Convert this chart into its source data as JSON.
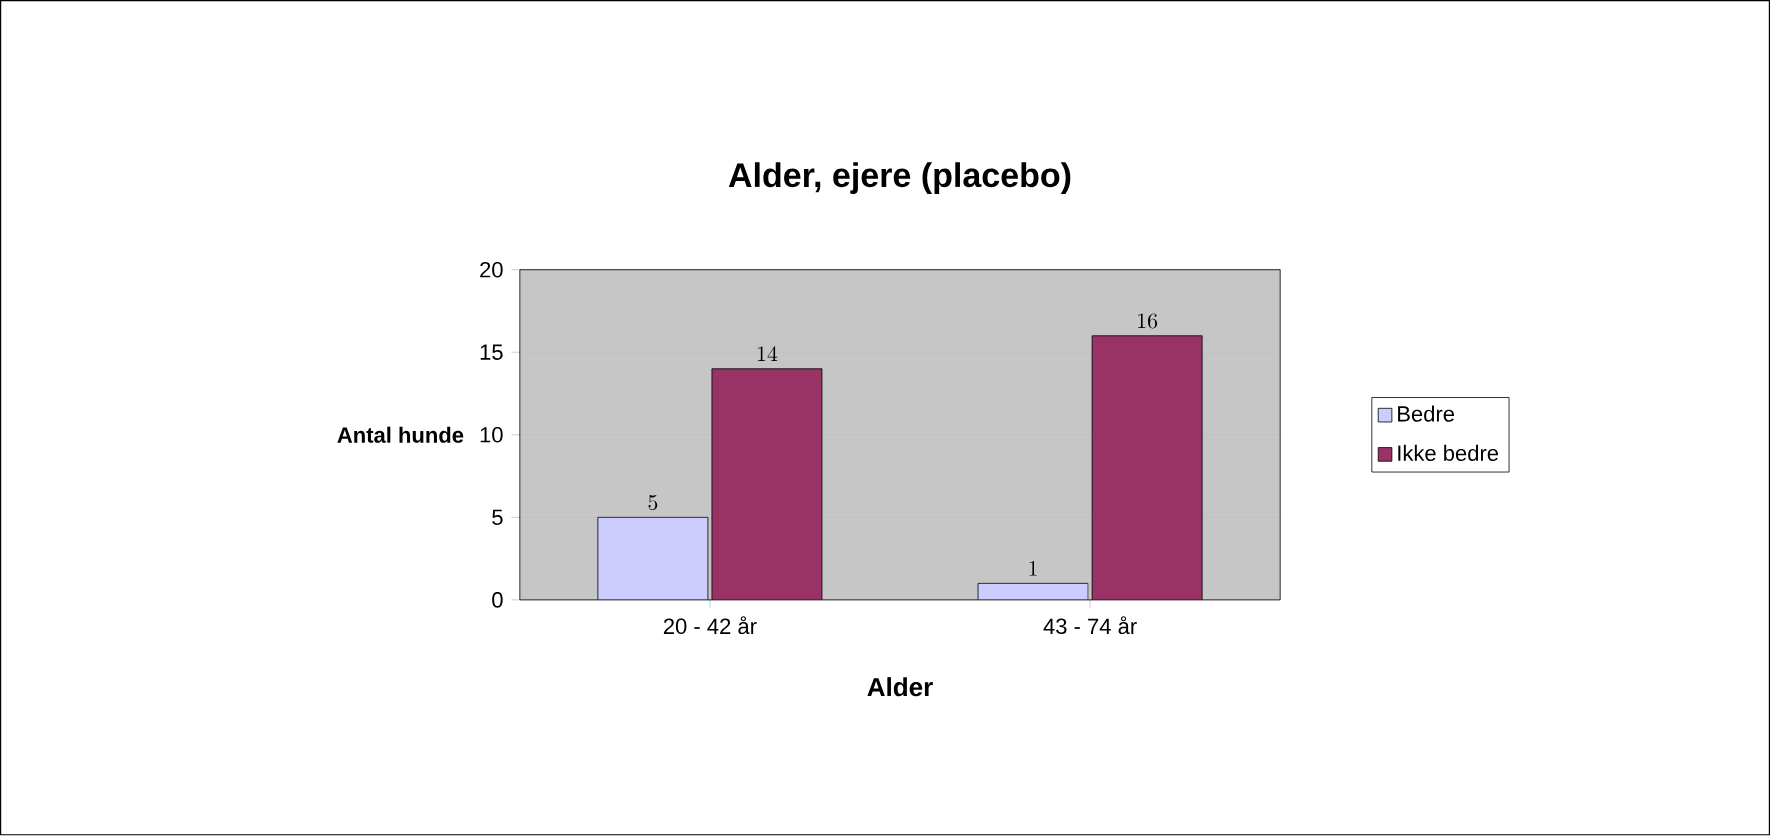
{
  "chart_data": {
    "type": "bar",
    "title": "Alder, ejere (placebo)",
    "xlabel": "Alder",
    "ylabel": "Antal hunde",
    "categories": [
      "20 - 42 år",
      "43 - 74 år"
    ],
    "series": [
      {
        "name": "Bedre",
        "color": "#ccccff",
        "values": [
          5,
          1
        ]
      },
      {
        "name": "Ikke bedre",
        "color": "#993366",
        "values": [
          14,
          16
        ]
      }
    ],
    "ylim": [
      0,
      20
    ],
    "yticks": [
      0,
      5,
      10,
      15,
      20
    ],
    "grid": "y",
    "legend": "right",
    "data_labels": true
  }
}
